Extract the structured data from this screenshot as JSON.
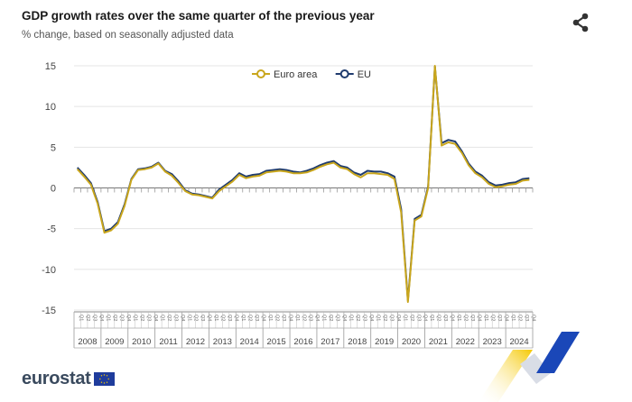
{
  "header": {
    "title": "GDP growth rates over the same quarter of the previous year",
    "subtitle": "% change, based on seasonally adjusted data"
  },
  "footer": {
    "logo_text": "eurostat"
  },
  "icons": {
    "share": "share-icon",
    "flag": "eu-flag-icon"
  },
  "colors": {
    "euro_area": "#c9a61c",
    "eu": "#1f3b6e",
    "grid": "#e4e4e4",
    "axis": "#888888",
    "deco_yellow": "#f5c800",
    "deco_blue": "#1a47b8"
  },
  "chart_data": {
    "type": "line",
    "title": "GDP growth rates over the same quarter of the previous year",
    "subtitle": "% change, based on seasonally adjusted data",
    "ylim": [
      -15,
      15
    ],
    "yticks": [
      15,
      10,
      5,
      0,
      -5,
      -10,
      -15
    ],
    "grid": "horizontal",
    "legend": "top-center",
    "quarter_labels": [
      "Q1",
      "Q2",
      "Q3",
      "Q4"
    ],
    "years": [
      "2008",
      "2009",
      "2010",
      "2011",
      "2012",
      "2013",
      "2014",
      "2015",
      "2016",
      "2017",
      "2018",
      "2019",
      "2020",
      "2021",
      "2022",
      "2023",
      "2024"
    ],
    "series": [
      {
        "name": "Euro area",
        "color": "#c9a61c",
        "values": [
          2.3,
          1.4,
          0.4,
          -1.9,
          -5.5,
          -5.2,
          -4.4,
          -2.2,
          1.0,
          2.2,
          2.3,
          2.5,
          3.0,
          2.0,
          1.5,
          0.6,
          -0.4,
          -0.8,
          -0.9,
          -1.1,
          -1.3,
          -0.4,
          0.2,
          0.8,
          1.6,
          1.2,
          1.4,
          1.5,
          1.9,
          2.0,
          2.1,
          2.0,
          1.8,
          1.8,
          1.9,
          2.2,
          2.6,
          2.9,
          3.1,
          2.5,
          2.3,
          1.7,
          1.3,
          1.8,
          1.8,
          1.7,
          1.6,
          1.1,
          -3.0,
          -14.0,
          -4.0,
          -3.5,
          0.0,
          15.0,
          5.2,
          5.6,
          5.4,
          4.3,
          2.8,
          1.8,
          1.3,
          0.5,
          0.1,
          0.2,
          0.4,
          0.5,
          0.9,
          1.0
        ]
      },
      {
        "name": "EU",
        "color": "#1f3b6e",
        "values": [
          2.5,
          1.6,
          0.6,
          -1.7,
          -5.3,
          -5.0,
          -4.2,
          -2.0,
          1.1,
          2.3,
          2.4,
          2.6,
          3.1,
          2.1,
          1.7,
          0.8,
          -0.3,
          -0.7,
          -0.8,
          -1.0,
          -1.2,
          -0.2,
          0.4,
          1.0,
          1.8,
          1.4,
          1.6,
          1.7,
          2.1,
          2.2,
          2.3,
          2.2,
          2.0,
          1.9,
          2.1,
          2.4,
          2.8,
          3.1,
          3.3,
          2.7,
          2.5,
          1.9,
          1.6,
          2.1,
          2.0,
          2.0,
          1.8,
          1.4,
          -2.6,
          -13.8,
          -3.8,
          -3.3,
          0.2,
          14.9,
          5.5,
          5.9,
          5.7,
          4.5,
          3.0,
          2.0,
          1.5,
          0.7,
          0.3,
          0.4,
          0.6,
          0.7,
          1.1,
          1.2
        ]
      }
    ]
  }
}
